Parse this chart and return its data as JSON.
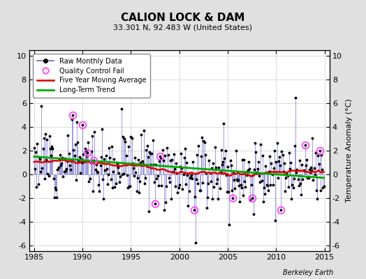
{
  "title": "CALION LOCK & DAM",
  "subtitle": "33.301 N, 92.483 W (United States)",
  "ylabel": "Temperature Anomaly (°C)",
  "watermark": "Berkeley Earth",
  "xlim": [
    1984.5,
    2015.5
  ],
  "ylim": [
    -6.5,
    10.5
  ],
  "yticks": [
    -6,
    -4,
    -2,
    0,
    2,
    4,
    6,
    8,
    10
  ],
  "xticks": [
    1985,
    1990,
    1995,
    2000,
    2005,
    2010,
    2015
  ],
  "bg_color": "#e0e0e0",
  "plot_bg_color": "#ffffff",
  "line_color": "#6666cc",
  "line_alpha": 0.75,
  "marker_color": "#000000",
  "ma_color": "#dd0000",
  "trend_color": "#00aa00",
  "qc_color": "#ff44ff",
  "seed": 12
}
